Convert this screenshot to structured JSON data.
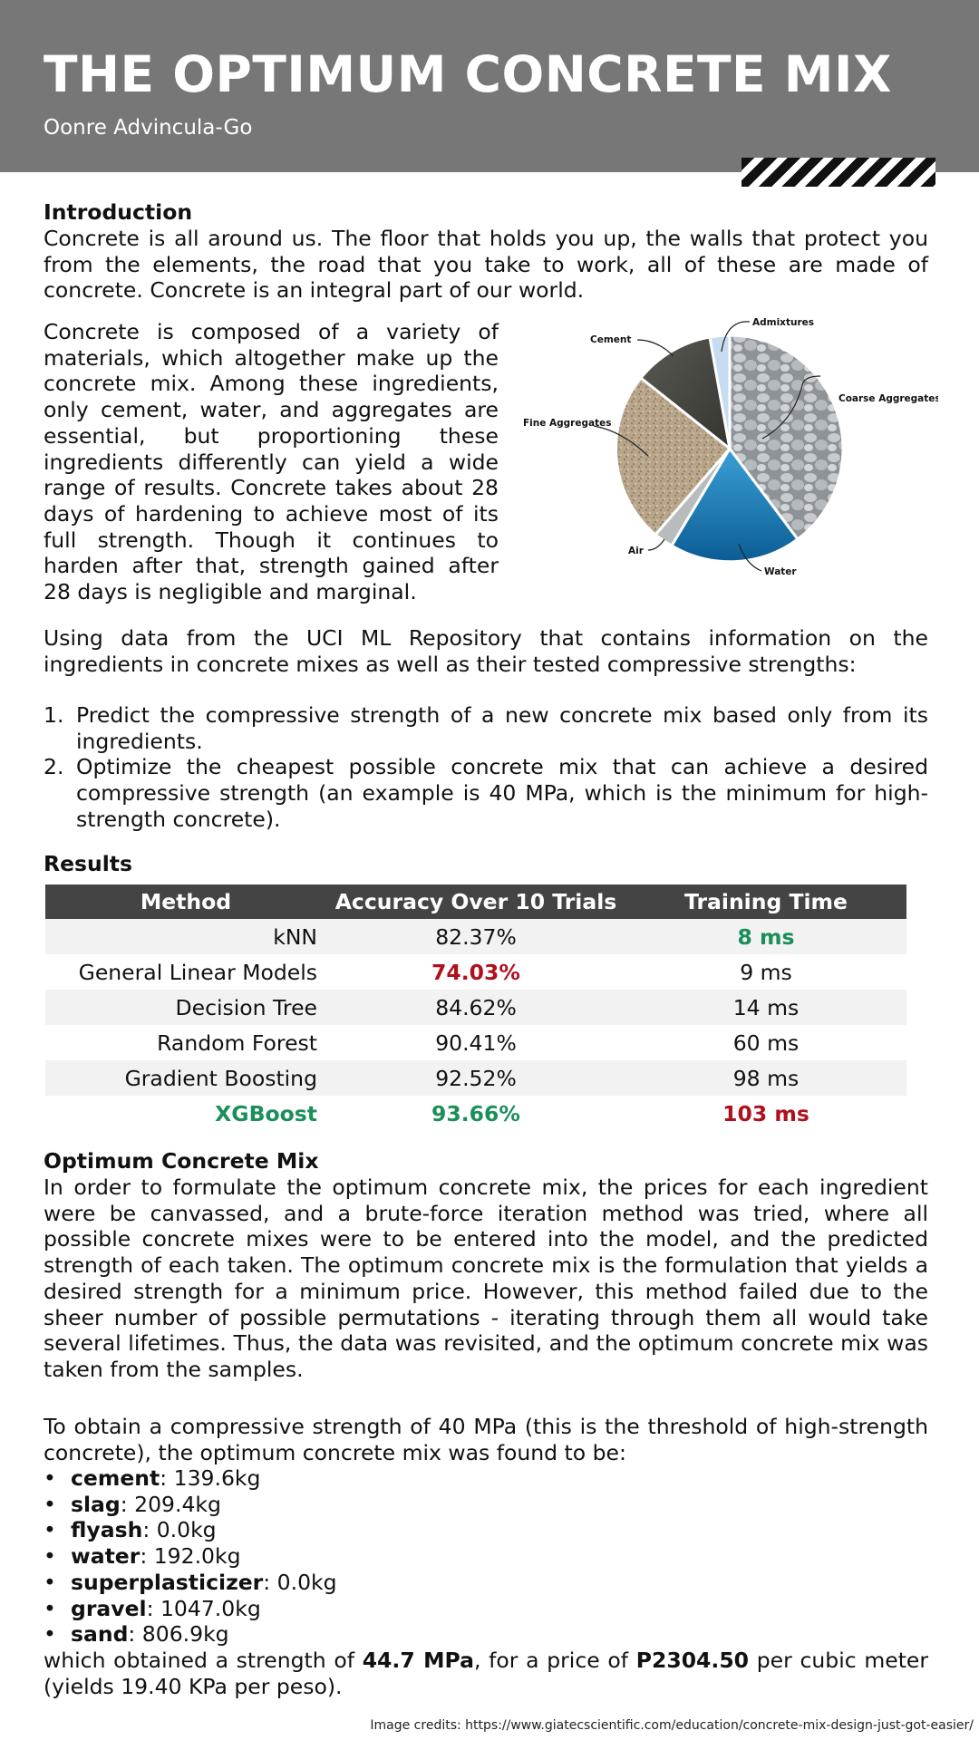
{
  "header": {
    "title": "THE OPTIMUM CONCRETE MIX",
    "author": "Oonre Advincula-Go"
  },
  "intro": {
    "heading": "Introduction",
    "p1": "Concrete is all around us. The floor that holds you up, the walls that protect you from the elements, the road that you take to work, all of these are made of concrete. Concrete is an integral part of our world.",
    "p2": "Concrete is composed of a variety of materials, which altogether make up the concrete mix. Among these ingredients, only cement, water, and aggregates are essential, but proportioning these ingredients differently can yield a wide range of results. Concrete takes about 28 days of hardening to achieve most of its full strength. Though it continues to harden after that, strength gained after 28 days is negligible and marginal.",
    "p3": "Using data from the UCI ML Repository that contains information on the ingredients in concrete mixes as well as their tested compressive strengths:"
  },
  "pie_labels": {
    "admixtures": "Admixtures",
    "cement": "Cement",
    "coarse": "Coarse Aggregates",
    "fine": "Fine Aggregates",
    "air": "Air",
    "water": "Water"
  },
  "goals": [
    {
      "num": "1.",
      "text": "Predict the compressive strength of a new concrete mix based only from its ingredients."
    },
    {
      "num": "2.",
      "text": "Optimize the cheapest possible concrete mix that can achieve a desired compressive strength (an example is 40 MPa, which is the minimum for high-strength concrete)."
    }
  ],
  "results": {
    "heading": "Results",
    "columns": [
      "Method",
      "Accuracy Over 10 Trials",
      "Training Time"
    ],
    "rows": [
      {
        "method": "kNN",
        "accuracy": "82.37%",
        "time": "8 ms"
      },
      {
        "method": "General Linear Models",
        "accuracy": "74.03%",
        "time": "9 ms"
      },
      {
        "method": "Decision Tree",
        "accuracy": "84.62%",
        "time": "14 ms"
      },
      {
        "method": "Random Forest",
        "accuracy": "90.41%",
        "time": "60 ms"
      },
      {
        "method": "Gradient Boosting",
        "accuracy": "92.52%",
        "time": "98 ms"
      },
      {
        "method": "XGBoost",
        "accuracy": "93.66%",
        "time": "103 ms"
      }
    ]
  },
  "optimum": {
    "heading": "Optimum Concrete Mix",
    "p1": "In order to formulate the optimum concrete mix, the prices for each ingredient were be canvassed, and a brute-force iteration method was tried, where all possible concrete mixes were to be entered into the model, and the predicted strength of each taken. The optimum concrete mix is the formulation that yields a desired strength for a minimum price. However, this method failed due to the sheer number of possible permutations - iterating through them all would take several lifetimes. Thus, the data was revisited, and the optimum concrete mix was taken from the samples.",
    "p2": "To obtain a compressive strength of 40 MPa (this is the threshold of high-strength concrete), the optimum concrete mix was found to be:",
    "ingredients": [
      {
        "name": "cement",
        "value": ": 139.6kg"
      },
      {
        "name": "slag",
        "value": ": 209.4kg"
      },
      {
        "name": "flyash",
        "value": ": 0.0kg"
      },
      {
        "name": "water",
        "value": ": 192.0kg"
      },
      {
        "name": "superplasticizer",
        "value": ": 0.0kg"
      },
      {
        "name": "gravel",
        "value": ": 1047.0kg"
      },
      {
        "name": "sand",
        "value": ": 806.9kg"
      }
    ],
    "result_pre": "which obtained a strength of ",
    "result_strength": "44.7 MPa",
    "result_mid": ", for a price of ",
    "result_price": "P2304.50",
    "result_post": " per cubic meter (yields 19.40 KPa per peso)."
  },
  "credits": "Image credits: https://www.giatecscientific.com/education/concrete-mix-design-just-got-easier/"
}
